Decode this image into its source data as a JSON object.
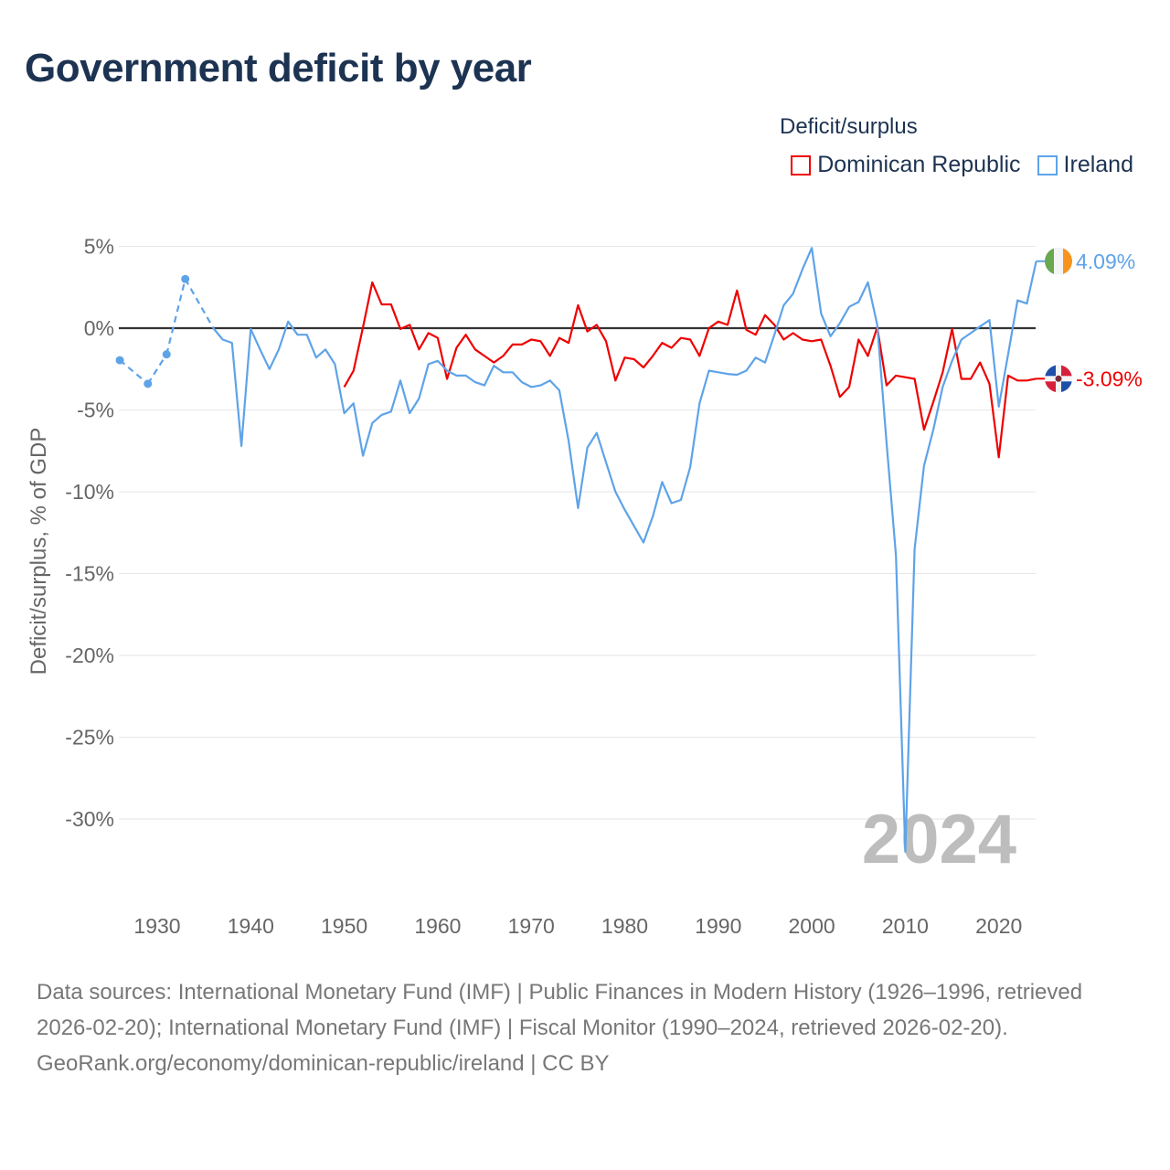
{
  "title": "Government deficit by year",
  "legend": {
    "title": "Deficit/surplus",
    "items": [
      {
        "label": "Dominican Republic",
        "color": "#ee0000"
      },
      {
        "label": "Ireland",
        "color": "#5ea3e8"
      }
    ]
  },
  "year_label": "2024",
  "footer": {
    "sources": "Data sources: International Monetary Fund (IMF) | Public Finances in Modern History (1926–1996, retrieved 2026-02-20); International Monetary Fund (IMF) | Fiscal Monitor (1990–2024, retrieved 2026-02-20).",
    "credit": "GeoRank.org/economy/dominican-republic/ireland | CC BY"
  },
  "chart_data": {
    "type": "line",
    "title": "Government deficit by year",
    "ylabel": "Deficit/surplus, % of GDP",
    "xlabel": "",
    "ylim": [
      -32,
      5
    ],
    "xlim": [
      1926,
      2024
    ],
    "y_ticks": [
      5,
      0,
      -5,
      -10,
      -15,
      -20,
      -25,
      -30
    ],
    "y_tick_labels": [
      "5%",
      "0%",
      "-5%",
      "-10%",
      "-15%",
      "-20%",
      "-25%",
      "-30%"
    ],
    "x_ticks": [
      1930,
      1940,
      1950,
      1960,
      1970,
      1980,
      1990,
      2000,
      2010,
      2020
    ],
    "x_tick_labels": [
      "1930",
      "1940",
      "1950",
      "1960",
      "1970",
      "1980",
      "1990",
      "2000",
      "2010",
      "2020"
    ],
    "grid": true,
    "legend_position": "top-right",
    "series": [
      {
        "name": "Dominican Republic",
        "color": "#ee0000",
        "end_label": "-3.09%",
        "flag": "dominican-republic-flag-icon",
        "years": [
          1950,
          1951,
          1952,
          1953,
          1954,
          1955,
          1956,
          1957,
          1958,
          1959,
          1960,
          1961,
          1962,
          1963,
          1964,
          1965,
          1966,
          1967,
          1968,
          1969,
          1970,
          1971,
          1972,
          1973,
          1974,
          1975,
          1976,
          1977,
          1978,
          1979,
          1980,
          1981,
          1982,
          1983,
          1984,
          1985,
          1986,
          1987,
          1988,
          1989,
          1990,
          1991,
          1992,
          1993,
          1994,
          1995,
          1996,
          1997,
          1998,
          1999,
          2000,
          2001,
          2002,
          2003,
          2004,
          2005,
          2006,
          2007,
          2008,
          2009,
          2010,
          2011,
          2012,
          2013,
          2014,
          2015,
          2016,
          2017,
          2018,
          2019,
          2020,
          2021,
          2022,
          2023,
          2024
        ],
        "values": [
          -3.6,
          -2.6,
          0.05,
          2.8,
          1.45,
          1.45,
          -0.05,
          0.2,
          -1.3,
          -0.3,
          -0.6,
          -3.1,
          -1.2,
          -0.4,
          -1.3,
          -1.7,
          -2.1,
          -1.7,
          -1.0,
          -1.0,
          -0.7,
          -0.8,
          -1.7,
          -0.6,
          -0.9,
          1.4,
          -0.2,
          0.2,
          -0.8,
          -3.2,
          -1.8,
          -1.9,
          -2.4,
          -1.7,
          -0.9,
          -1.2,
          -0.6,
          -0.7,
          -1.7,
          0.0,
          0.4,
          0.2,
          2.3,
          -0.1,
          -0.4,
          0.8,
          0.2,
          -0.7,
          -0.3,
          -0.7,
          -0.8,
          -0.7,
          -2.3,
          -4.2,
          -3.6,
          -0.7,
          -1.7,
          0.05,
          -3.5,
          -2.9,
          -3.0,
          -3.1,
          -6.2,
          -4.5,
          -2.7,
          -0.05,
          -3.1,
          -3.1,
          -2.1,
          -3.4,
          -7.9,
          -2.9,
          -3.2,
          -3.2,
          -3.09
        ]
      },
      {
        "name": "Ireland",
        "color": "#5ea3e8",
        "end_label": "4.09%",
        "flag": "ireland-flag-icon",
        "years": [
          1926,
          1929,
          1931,
          1933,
          1936,
          1937,
          1938,
          1939,
          1940,
          1941,
          1942,
          1943,
          1944,
          1945,
          1946,
          1947,
          1948,
          1949,
          1950,
          1951,
          1952,
          1953,
          1954,
          1955,
          1956,
          1957,
          1958,
          1959,
          1960,
          1961,
          1962,
          1963,
          1964,
          1965,
          1966,
          1967,
          1968,
          1969,
          1970,
          1971,
          1972,
          1973,
          1974,
          1975,
          1976,
          1977,
          1978,
          1979,
          1980,
          1981,
          1982,
          1983,
          1984,
          1985,
          1986,
          1987,
          1988,
          1989,
          1990,
          1991,
          1992,
          1993,
          1994,
          1995,
          1996,
          1997,
          1998,
          1999,
          2000,
          2001,
          2002,
          2003,
          2004,
          2005,
          2006,
          2007,
          2008,
          2009,
          2010,
          2011,
          2012,
          2013,
          2014,
          2015,
          2016,
          2017,
          2018,
          2019,
          2020,
          2021,
          2022,
          2023,
          2024
        ],
        "values": [
          -1.96,
          -3.4,
          -1.6,
          3.0,
          0.0,
          -0.7,
          -0.9,
          -7.2,
          -0.05,
          -1.3,
          -2.5,
          -1.3,
          0.4,
          -0.4,
          -0.4,
          -1.8,
          -1.3,
          -2.2,
          -5.2,
          -4.6,
          -7.8,
          -5.8,
          -5.3,
          -5.1,
          -3.2,
          -5.2,
          -4.3,
          -2.2,
          -2.0,
          -2.6,
          -2.9,
          -2.9,
          -3.3,
          -3.5,
          -2.3,
          -2.7,
          -2.7,
          -3.3,
          -3.6,
          -3.5,
          -3.2,
          -3.8,
          -6.9,
          -11.0,
          -7.3,
          -6.4,
          -8.2,
          -10.0,
          -11.1,
          -12.1,
          -13.1,
          -11.5,
          -9.4,
          -10.7,
          -10.5,
          -8.5,
          -4.6,
          -2.6,
          -2.7,
          -2.8,
          -2.85,
          -2.6,
          -1.8,
          -2.1,
          -0.4,
          1.4,
          2.1,
          3.6,
          4.9,
          0.9,
          -0.5,
          0.3,
          1.3,
          1.6,
          2.8,
          0.2,
          -7.0,
          -13.9,
          -32.0,
          -13.5,
          -8.4,
          -6.2,
          -3.6,
          -2.0,
          -0.7,
          -0.3,
          0.1,
          0.5,
          -4.8,
          -1.6,
          1.7,
          1.5,
          4.09
        ]
      }
    ]
  }
}
